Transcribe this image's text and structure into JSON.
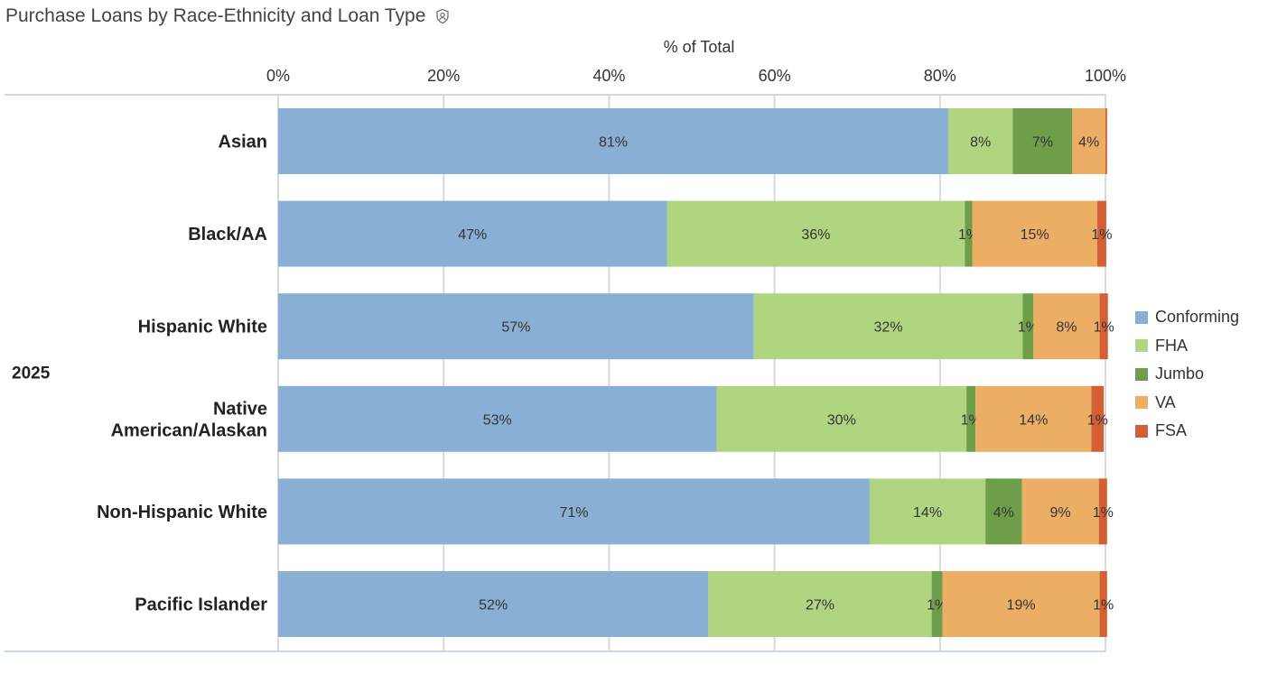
{
  "title": "Purchase Loans by Race-Ethnicity and Loan Type",
  "chart_data": {
    "type": "bar",
    "orientation": "horizontal",
    "stacked": true,
    "normalized": true,
    "xlabel": "% of Total",
    "ylabel": "",
    "xlim": [
      0,
      100
    ],
    "ticks": [
      "0%",
      "20%",
      "40%",
      "60%",
      "80%",
      "100%"
    ],
    "tick_values": [
      0,
      20,
      40,
      60,
      80,
      100
    ],
    "group_label": "2025",
    "categories": [
      "Asian",
      "Black/AA",
      "Hispanic White",
      "Native American/Alaskan",
      "Non-Hispanic White",
      "Pacific Islander"
    ],
    "category_lines": [
      [
        "Asian"
      ],
      [
        "Black/AA"
      ],
      [
        "Hispanic White"
      ],
      [
        "Native",
        "American/Alaskan"
      ],
      [
        "Non-Hispanic White"
      ],
      [
        "Pacific Islander"
      ]
    ],
    "series": [
      {
        "name": "Conforming",
        "color": "#8aafd4",
        "values": [
          81,
          47,
          57.5,
          53,
          71.5,
          52
        ],
        "labels": [
          "81%",
          "47%",
          "57%",
          "53%",
          "71%",
          "52%"
        ]
      },
      {
        "name": "FHA",
        "color": "#b0d580",
        "values": [
          7.8,
          36,
          32.5,
          30.2,
          14,
          27
        ],
        "labels": [
          "8%",
          "36%",
          "32%",
          "30%",
          "14%",
          "27%"
        ]
      },
      {
        "name": "Jumbo",
        "color": "#6e9e49",
        "values": [
          7.2,
          0.9,
          1.3,
          1.1,
          4.4,
          1.3
        ],
        "labels": [
          "7%",
          "1%",
          "1%",
          "1%",
          "4%",
          "1%"
        ]
      },
      {
        "name": "VA",
        "color": "#ecae64",
        "values": [
          4,
          15.1,
          8,
          14,
          9.3,
          19
        ],
        "labels": [
          "4%",
          "15%",
          "8%",
          "14%",
          "9%",
          "19%"
        ]
      },
      {
        "name": "FSA",
        "color": "#d35f35",
        "values": [
          0.2,
          1.1,
          1,
          1.5,
          1,
          0.9
        ],
        "labels": [
          "",
          "1%",
          "1%",
          "1%",
          "1%",
          "1%"
        ]
      }
    ],
    "legend_position": "right",
    "grid": true
  }
}
